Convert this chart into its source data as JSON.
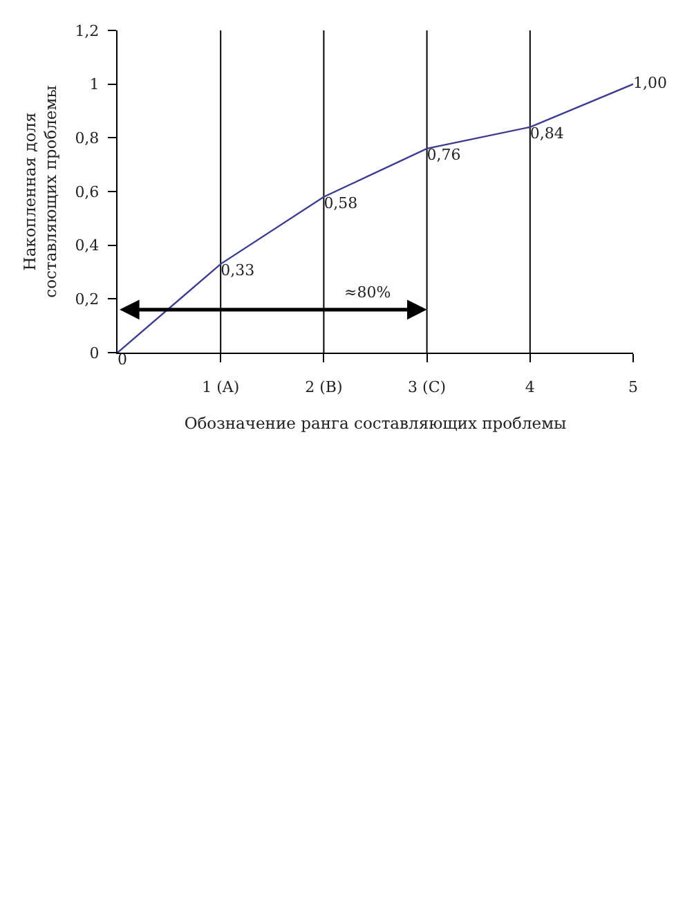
{
  "chart_data": {
    "type": "line",
    "xlabel": "Обозначение ранга составляющих проблемы",
    "ylabel": "Накопленная доля\nсоставляющих проблемы",
    "x": [
      0,
      1,
      2,
      3,
      4,
      5
    ],
    "series": [
      {
        "color": "#3b3b8f",
        "values": [
          0,
          0.33,
          0.58,
          0.76,
          0.84,
          1.0
        ],
        "value_labels": [
          "0",
          "0,33",
          "0,58",
          "0,76",
          "0,84",
          "1,00"
        ]
      }
    ],
    "xlim": [
      0,
      5
    ],
    "xticks": [
      {
        "value": 1,
        "label": "1 (A)"
      },
      {
        "value": 2,
        "label": "2 (B)"
      },
      {
        "value": 3,
        "label": "3 (C)"
      },
      4,
      5
    ],
    "ylim": [
      0,
      1.2
    ],
    "yticks": [
      0,
      {
        "value": 0.2,
        "label": "0,2"
      },
      {
        "value": 0.4,
        "label": "0,4"
      },
      {
        "value": 0.6,
        "label": "0,6"
      },
      {
        "value": 0.8,
        "label": "0,8"
      },
      1,
      {
        "value": 1.2,
        "label": "1,2"
      }
    ],
    "ref_lines": [
      {
        "axis": "x",
        "value": 1,
        "color": "#000000"
      },
      {
        "axis": "x",
        "value": 2,
        "color": "#000000"
      },
      {
        "axis": "x",
        "value": 3,
        "color": "#000000"
      },
      {
        "axis": "x",
        "value": 4,
        "color": "#000000"
      }
    ],
    "annotations": [
      {
        "text": "≈80%",
        "x": 3,
        "y": 0.16
      }
    ],
    "grid": false,
    "marker": "none",
    "line_style": "solid"
  }
}
